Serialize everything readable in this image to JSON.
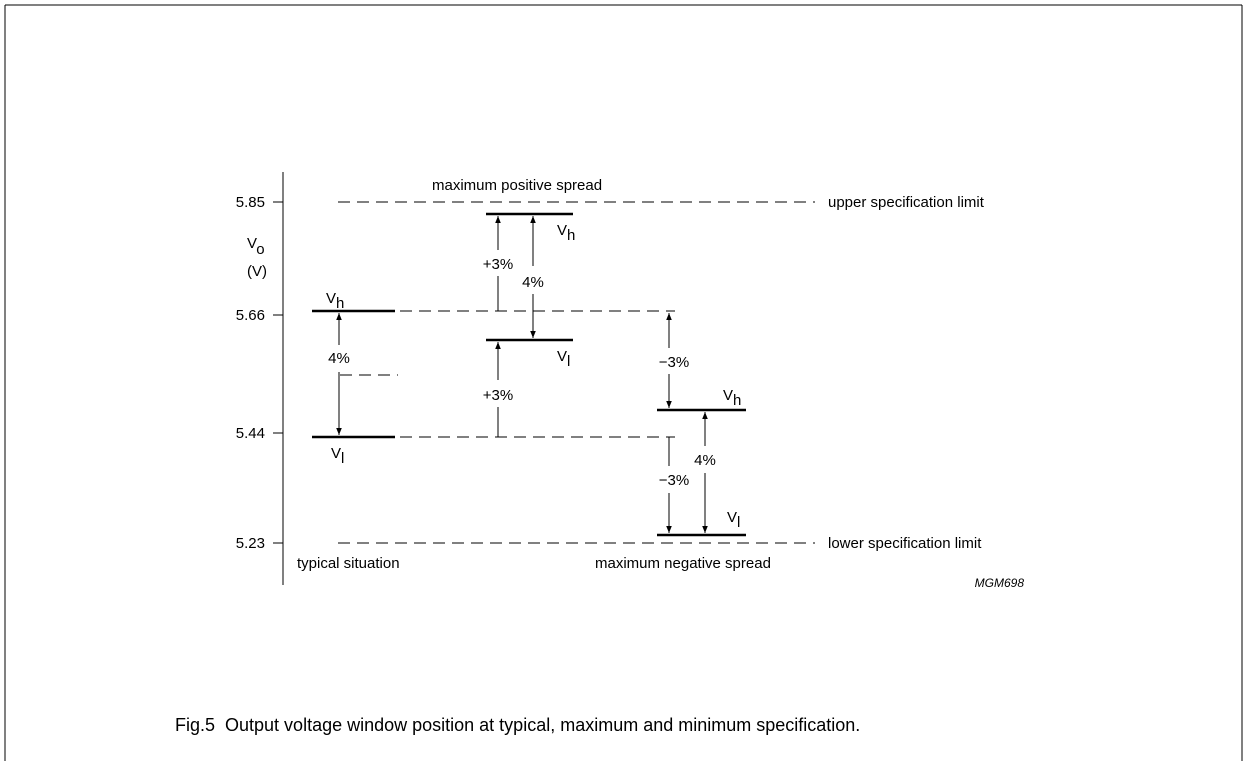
{
  "axis": {
    "label": {
      "symbol": "V",
      "subscript": "o"
    },
    "unit": "(V)",
    "ticks": [
      "5.85",
      "5.66",
      "5.44",
      "5.23"
    ]
  },
  "limits": {
    "upper": "upper specification limit",
    "lower": "lower specification limit"
  },
  "scenarios": [
    {
      "title": "typical situation",
      "high": {
        "symbol": "V",
        "subscript": "h"
      },
      "low": {
        "symbol": "V",
        "subscript": "l"
      },
      "window": "4%"
    },
    {
      "title": "maximum positive spread",
      "high": {
        "symbol": "V",
        "subscript": "h"
      },
      "low": {
        "symbol": "V",
        "subscript": "l"
      },
      "window": "4%",
      "shifts": [
        "+3%",
        "+3%"
      ]
    },
    {
      "title": "maximum negative spread",
      "high": {
        "symbol": "V",
        "subscript": "h"
      },
      "low": {
        "symbol": "V",
        "subscript": "l"
      },
      "window": "4%",
      "shifts": [
        "−3%",
        "−3%"
      ]
    }
  ],
  "code": "MGM698",
  "caption": "Fig.5  Output voltage window position at typical, maximum and minimum specification."
}
